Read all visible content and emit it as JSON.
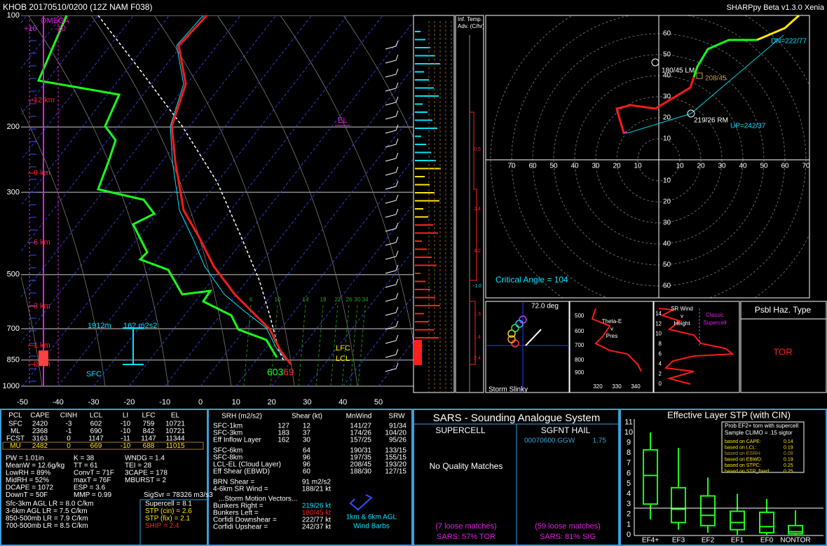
{
  "header": {
    "station_info": "KHOB   20170510/0200  (12Z  NAM  F038)",
    "version": "SHARPpy Beta v1.3.0 Xenia"
  },
  "skewt": {
    "pressure_labels": [
      100,
      200,
      300,
      500,
      700,
      850,
      1000
    ],
    "temp_labels": [
      -50,
      -40,
      -30,
      -20,
      -10,
      0,
      10,
      20,
      30,
      40,
      50
    ],
    "height_labels": [
      "12 km",
      "9 km",
      "6 km",
      "3 km",
      "1 km",
      "0 km"
    ],
    "omega": {
      "title": "OMEGA",
      "plus": "+10",
      "minus": "-10"
    },
    "levels": {
      "el": "EL",
      "lfc": "LFC",
      "lcl": "LCL"
    },
    "eff_inflow": {
      "height": "1912m",
      "srh": "162 m2s2",
      "base": "SFC"
    },
    "mixing_ratios": [
      6,
      10,
      14,
      18,
      22,
      26,
      30,
      34
    ],
    "surface": {
      "dewpoint": "603",
      "temperature": "69"
    }
  },
  "temp_advection": {
    "title_1": "Inf. Temp.",
    "title_2": "Adv. (C/hr)",
    "values": [
      "0.5",
      "2.4",
      "4.2",
      "-1.0",
      "1.3",
      "1.4",
      "2.4"
    ]
  },
  "hodograph": {
    "ring_labels_top": [
      10,
      20,
      30,
      40,
      50,
      60
    ],
    "ring_labels_bottom": [
      10,
      20,
      30,
      40,
      50,
      60
    ],
    "axis_labels_left": [
      70,
      60,
      50,
      40,
      30,
      20,
      10
    ],
    "axis_labels_right": [
      10,
      20,
      30,
      40,
      50,
      60,
      70
    ],
    "downshear": "DN=222/77",
    "left_mover": "180/45 LM",
    "mean_wind": "208/45",
    "right_mover": "219/26 RM",
    "upshear": "UP=242/37",
    "critical_angle": "Critical Angle = 104"
  },
  "slinky": {
    "angle": "72.0 deg",
    "title": "Storm Slinky"
  },
  "theta_e": {
    "title": [
      "Theta-E",
      "v",
      "Pres"
    ],
    "y_labels": [
      500,
      600,
      700,
      800,
      900
    ],
    "x_labels": [
      320,
      330,
      340
    ]
  },
  "sr_wind": {
    "title": [
      "SR Wind",
      "v",
      "Height"
    ],
    "tag": [
      "Classic",
      "Supercell"
    ],
    "y_labels": [
      14,
      12,
      10,
      8,
      6,
      4,
      2,
      0
    ]
  },
  "hazard": {
    "title": "Psbl Haz. Type",
    "value": "TOR"
  },
  "parcels": {
    "headers": [
      "PCL",
      "CAPE",
      "CINH",
      "LCL",
      "LI",
      "LFC",
      "EL"
    ],
    "rows": [
      [
        "SFC",
        2420,
        -3,
        602,
        -10,
        759,
        10721
      ],
      [
        "ML",
        2368,
        -1,
        690,
        -10,
        842,
        10721
      ],
      [
        "FCST",
        3163,
        0,
        1147,
        -11,
        1147,
        11344
      ],
      [
        "MU",
        2482,
        0,
        669,
        -10,
        688,
        11015
      ]
    ]
  },
  "indices": [
    [
      "PW = 1.01in",
      "K = 38",
      "WNDG = 1.4"
    ],
    [
      "MeanW = 12.6g/kg",
      "TT = 61",
      "TEI = 28"
    ],
    [
      "LowRH = 89%",
      "ConvT = 71F",
      "3CAPE = 178"
    ],
    [
      "MidRH = 52%",
      "maxT = 76F",
      "MBURST = 2"
    ],
    [
      "DCAPE = 1072",
      "ESP = 3.6"
    ],
    [
      "DownT = 50F",
      "MMP = 0.99",
      "SigSvr = 78326 m3/s3"
    ]
  ],
  "lapse_rates": [
    "Sfc-3km AGL LR = 8.0 C/km",
    "3-6km AGL LR = 7.5 C/km",
    "850-500mb LR = 7.9 C/km",
    "700-500mb LR = 8.5 C/km"
  ],
  "composites": [
    "Supercell = 8.1",
    "STP (cin) = 2.6",
    "STP (fix) = 2.1",
    "SHIP = 2.4"
  ],
  "kinematics": {
    "headers": [
      "SRH (m2/s2)",
      "Shear (kt)",
      "MnWind",
      "SRW"
    ],
    "rows_srh": [
      [
        "SFC-1km",
        127,
        12,
        "141/27",
        "91/34"
      ],
      [
        "SFC-3km",
        183,
        37,
        "174/26",
        "104/20"
      ],
      [
        "Eff Inflow Layer",
        162,
        30,
        "157/25",
        "95/26"
      ]
    ],
    "rows_shear": [
      [
        "SFC-6km",
        64,
        "190/31",
        "133/15"
      ],
      [
        "SFC-8km",
        96,
        "197/35",
        "155/15"
      ],
      [
        "LCL-EL (Cloud Layer)",
        96,
        "208/45",
        "193/20"
      ],
      [
        "Eff Shear (EBWD)",
        60,
        "188/30",
        "127/15"
      ]
    ],
    "extra": [
      [
        "BRN Shear =",
        "91 m2/s2"
      ],
      [
        "4-6km SR Wind =",
        "188/21 kt"
      ]
    ],
    "storm_motion_title": "...Storm Motion Vectors...",
    "storm_motion": [
      [
        "Bunkers Right =",
        "219/26 kt"
      ],
      [
        "Bunkers Left =",
        "180/45 kt"
      ],
      [
        "Corfidi Downshear =",
        "222/77 kt"
      ],
      [
        "Corfidi Upshear =",
        "242/37 kt"
      ]
    ],
    "barbs_label": [
      "1km & 6km AGL",
      "Wind Barbs"
    ]
  },
  "sars": {
    "title": "SARS - Sounding Analogue System",
    "supercell": "SUPERCELL",
    "hail": "SGFNT HAIL",
    "hail_match": "00070600.GGW",
    "hail_size": "1.75",
    "supercell_result": "No Quality Matches",
    "supercell_loose": "(7 loose matches)",
    "supercell_pct": "SARS: 57% TOR",
    "hail_loose": "(59 loose matches)",
    "hail_pct": "SARS: 81% SIG"
  },
  "stp": {
    "title": "Effective Layer STP (with CIN)",
    "y_labels": [
      0,
      1,
      2,
      3,
      4,
      5,
      6,
      7,
      8,
      9,
      10,
      11
    ],
    "x_labels": [
      "EF4+",
      "EF3",
      "EF2",
      "EF1",
      "EF0",
      "NONTOR"
    ],
    "legend": [
      "Prob EF2+ torn with supercell",
      "Sample CLIMO = .15 sigtor"
    ],
    "probs": [
      [
        "based on CAPE:",
        "0.14"
      ],
      [
        "based on LCL:",
        "0.19"
      ],
      [
        "based on ESRH:",
        "0.08"
      ],
      [
        "based on EBWD:",
        "0.19"
      ],
      [
        "based on STPC:",
        "0.25"
      ],
      [
        "based on STP_fixed:",
        "0.25"
      ]
    ]
  }
}
